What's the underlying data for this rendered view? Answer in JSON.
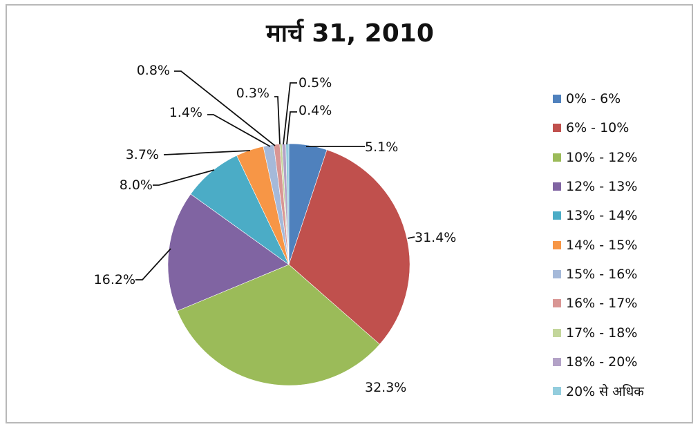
{
  "chart_data": {
    "type": "pie",
    "title": "मार्च  31, 2010",
    "categories": [
      "0% - 6%",
      "6% - 10%",
      "10% - 12%",
      "12% - 13%",
      "13% - 14%",
      "14% - 15%",
      "15% - 16%",
      "16% - 17%",
      "17% - 18%",
      "18% - 20%",
      "20% से अधिक"
    ],
    "values": [
      5.1,
      31.4,
      32.3,
      16.2,
      8.0,
      3.7,
      1.4,
      0.8,
      0.3,
      0.5,
      0.4
    ],
    "data_labels": [
      "5.1%",
      "31.4%",
      "32.3%",
      "16.2%",
      "8.0%",
      "3.7%",
      "1.4%",
      "0.8%",
      "0.3%",
      "0.5%",
      "0.4%"
    ],
    "colors": [
      "#4f81bd",
      "#c0504d",
      "#9bbb59",
      "#8064a2",
      "#4bacc6",
      "#f79646",
      "#a5b9d9",
      "#d99694",
      "#c3d69b",
      "#b3a2c7",
      "#93cddd"
    ],
    "legend_position": "right"
  }
}
